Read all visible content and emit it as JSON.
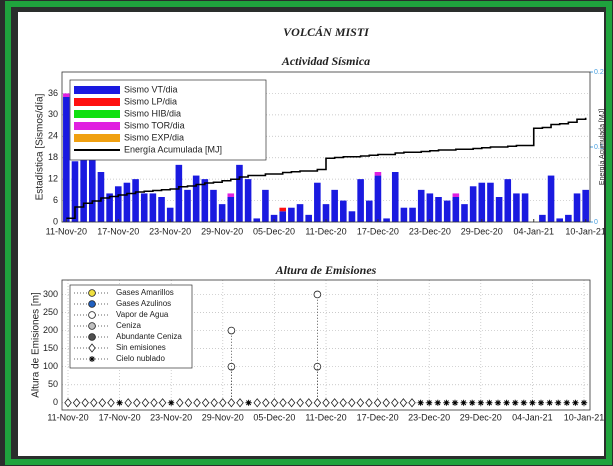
{
  "title": "VOLCÁN MISTI",
  "chart_data": [
    {
      "type": "bar",
      "title": "Actividad Sísmica",
      "y_label": "Estadística [Sismos/día]",
      "y2_label": "Energía Acumulada [MJ]",
      "stacked": true,
      "grid": true,
      "legend": "upper-left",
      "categories": [
        "11-Nov-20",
        null,
        null,
        null,
        null,
        null,
        "17-Nov-20",
        null,
        null,
        null,
        null,
        null,
        "23-Nov-20",
        null,
        null,
        null,
        null,
        null,
        "29-Nov-20",
        null,
        null,
        null,
        null,
        null,
        "05-Dec-20",
        null,
        null,
        null,
        null,
        null,
        "11-Dec-20",
        null,
        null,
        null,
        null,
        null,
        "17-Dec-20",
        null,
        null,
        null,
        null,
        null,
        "23-Dec-20",
        null,
        null,
        null,
        null,
        null,
        "29-Dec-20",
        null,
        null,
        null,
        null,
        null,
        "04-Jan-21",
        null,
        null,
        null,
        null,
        null,
        "10-Jan-21"
      ],
      "ylim": [
        0,
        42
      ],
      "yticks": [
        0,
        6,
        12,
        18,
        24,
        30,
        36
      ],
      "y2lim": [
        0,
        0.2
      ],
      "y2ticks": [
        0,
        0.1,
        0.2
      ],
      "series": [
        {
          "name": "Sismo VT/dia",
          "color": "#1a1ae0",
          "values": [
            35,
            17,
            19,
            18,
            14,
            8,
            10,
            11,
            12,
            8,
            8,
            7,
            4,
            16,
            9,
            13,
            12,
            9,
            5,
            7,
            16,
            12,
            1,
            9,
            2,
            3,
            4,
            5,
            2,
            11,
            5,
            9,
            6,
            3,
            12,
            6,
            13,
            1,
            14,
            4,
            4,
            9,
            8,
            7,
            6,
            7,
            5,
            10,
            11,
            11,
            7,
            12,
            8,
            8,
            0,
            2,
            13,
            1,
            2,
            8,
            9
          ]
        },
        {
          "name": "Sismo LP/dia",
          "color": "#ff1010",
          "values": [
            0,
            0,
            0,
            0,
            0,
            0,
            0,
            0,
            0,
            0,
            0,
            0,
            0,
            0,
            0,
            0,
            0,
            0,
            0,
            0,
            0,
            0,
            0,
            0,
            0,
            1,
            0,
            0,
            0,
            0,
            0,
            0,
            0,
            0,
            0,
            0,
            0,
            0,
            0,
            0,
            0,
            0,
            0,
            0,
            0,
            0,
            0,
            0,
            0,
            0,
            0,
            0,
            0,
            0,
            0,
            0,
            0,
            0,
            0,
            0,
            0
          ]
        },
        {
          "name": "Sismo HIB/dia",
          "color": "#10e010",
          "values": [
            0,
            0,
            0,
            0,
            0,
            0,
            0,
            0,
            0,
            0,
            0,
            0,
            0,
            0,
            0,
            0,
            0,
            0,
            0,
            0,
            0,
            0,
            0,
            0,
            0,
            0,
            0,
            0,
            0,
            0,
            0,
            0,
            0,
            0,
            0,
            0,
            0,
            0,
            0,
            0,
            0,
            0,
            0,
            0,
            0,
            0,
            0,
            0,
            0,
            0,
            0,
            0,
            0,
            0,
            0,
            0,
            0,
            0,
            0,
            0,
            0
          ]
        },
        {
          "name": "Sismo TOR/dia",
          "color": "#e020e0",
          "values": [
            1,
            0,
            0,
            0,
            0,
            0,
            0,
            0,
            0,
            0,
            0,
            0,
            0,
            0,
            0,
            0,
            0,
            0,
            0,
            1,
            0,
            0,
            0,
            0,
            0,
            0,
            0,
            0,
            0,
            0,
            0,
            0,
            0,
            0,
            0,
            0,
            1,
            0,
            0,
            0,
            0,
            0,
            0,
            0,
            0,
            1,
            0,
            0,
            0,
            0,
            0,
            0,
            0,
            0,
            0,
            0,
            0,
            0,
            0,
            0,
            0
          ]
        },
        {
          "name": "Sismo EXP/dia",
          "color": "#f0a010",
          "values": [
            0,
            0,
            0,
            0,
            0,
            0,
            0,
            0,
            0,
            0,
            0,
            0,
            0,
            0,
            0,
            0,
            0,
            0,
            0,
            0,
            0,
            0,
            0,
            0,
            0,
            0,
            0,
            0,
            0,
            0,
            0,
            0,
            0,
            0,
            0,
            0,
            0,
            0,
            0,
            0,
            0,
            0,
            0,
            0,
            0,
            0,
            0,
            0,
            0,
            0,
            0,
            0,
            0,
            0,
            0,
            0,
            0,
            0,
            0,
            0,
            0
          ]
        },
        {
          "name": "Energía Acumulada [MJ]",
          "type": "line",
          "axis": "y2",
          "color": "#000000",
          "values": [
            0.005,
            0.02,
            0.025,
            0.028,
            0.032,
            0.034,
            0.036,
            0.038,
            0.04,
            0.041,
            0.042,
            0.043,
            0.044,
            0.047,
            0.048,
            0.05,
            0.052,
            0.053,
            0.055,
            0.057,
            0.06,
            0.062,
            0.062,
            0.064,
            0.064,
            0.066,
            0.067,
            0.068,
            0.068,
            0.07,
            0.085,
            0.086,
            0.087,
            0.087,
            0.088,
            0.089,
            0.09,
            0.09,
            0.092,
            0.093,
            0.093,
            0.094,
            0.095,
            0.096,
            0.096,
            0.097,
            0.097,
            0.098,
            0.099,
            0.1,
            0.1,
            0.101,
            0.102,
            0.102,
            0.125,
            0.126,
            0.13,
            0.131,
            0.133,
            0.137,
            0.139
          ]
        }
      ]
    },
    {
      "type": "scatter",
      "title": "Altura de Emisiones",
      "y_label": "Altura de Emisiones [m]",
      "grid": true,
      "legend": "upper-left",
      "xlim": [
        "11-Nov-20",
        "10-Jan-21"
      ],
      "xticks": [
        "11-Nov-20",
        "17-Nov-20",
        "23-Nov-20",
        "29-Nov-20",
        "05-Dec-20",
        "11-Dec-20",
        "17-Dec-20",
        "23-Dec-20",
        "29-Dec-20",
        "04-Jan-21",
        "10-Jan-21"
      ],
      "ylim": [
        -20,
        340
      ],
      "yticks": [
        0,
        50,
        100,
        150,
        200,
        250,
        300
      ],
      "series": [
        {
          "name": "Gases Amarillos",
          "marker": "circle",
          "color": "#f0e040",
          "x": [],
          "values": []
        },
        {
          "name": "Gases Azulinos",
          "marker": "circle",
          "color": "#2060c0",
          "x": [],
          "values": []
        },
        {
          "name": "Vapor de Agua",
          "marker": "circle",
          "color": "#ffffff",
          "stem": true,
          "x": [
            "30-Nov-20",
            "30-Nov-20",
            "10-Dec-20",
            "10-Dec-20"
          ],
          "values": [
            100,
            200,
            100,
            300
          ]
        },
        {
          "name": "Ceniza",
          "marker": "circle",
          "color": "#c0c0c0",
          "x": [],
          "values": []
        },
        {
          "name": "Abundante Ceniza",
          "marker": "circle",
          "color": "#505050",
          "x": [],
          "values": []
        },
        {
          "name": "Sin emisiones",
          "marker": "diamond",
          "color": "#ffffff",
          "x": [
            "11-Nov-20",
            "12-Nov-20",
            "13-Nov-20",
            "14-Nov-20",
            "15-Nov-20",
            "16-Nov-20",
            "18-Nov-20",
            "19-Nov-20",
            "20-Nov-20",
            "21-Nov-20",
            "22-Nov-20",
            "24-Nov-20",
            "25-Nov-20",
            "26-Nov-20",
            "27-Nov-20",
            "28-Nov-20",
            "29-Nov-20",
            "30-Nov-20",
            "01-Dec-20",
            "03-Dec-20",
            "04-Dec-20",
            "05-Dec-20",
            "06-Dec-20",
            "07-Dec-20",
            "08-Dec-20",
            "09-Dec-20",
            "10-Dec-20",
            "11-Dec-20",
            "12-Dec-20",
            "13-Dec-20",
            "14-Dec-20",
            "15-Dec-20",
            "16-Dec-20",
            "17-Dec-20",
            "18-Dec-20",
            "19-Dec-20",
            "20-Dec-20",
            "21-Dec-20"
          ],
          "values": [
            0,
            0,
            0,
            0,
            0,
            0,
            0,
            0,
            0,
            0,
            0,
            0,
            0,
            0,
            0,
            0,
            0,
            0,
            0,
            0,
            0,
            0,
            0,
            0,
            0,
            0,
            0,
            0,
            0,
            0,
            0,
            0,
            0,
            0,
            0,
            0,
            0,
            0
          ]
        },
        {
          "name": "Cielo nublado",
          "marker": "asterisk",
          "color": "#000000",
          "x": [
            "17-Nov-20",
            "23-Nov-20",
            "02-Dec-20",
            "22-Dec-20",
            "23-Dec-20",
            "24-Dec-20",
            "25-Dec-20",
            "26-Dec-20",
            "27-Dec-20",
            "28-Dec-20",
            "29-Dec-20",
            "30-Dec-20",
            "31-Dec-20",
            "01-Jan-21",
            "02-Jan-21",
            "03-Jan-21",
            "04-Jan-21",
            "05-Jan-21",
            "06-Jan-21",
            "07-Jan-21",
            "08-Jan-21",
            "09-Jan-21",
            "10-Jan-21"
          ],
          "values": [
            0,
            0,
            0,
            0,
            0,
            0,
            0,
            0,
            0,
            0,
            0,
            0,
            0,
            0,
            0,
            0,
            0,
            0,
            0,
            0,
            0,
            0,
            0
          ]
        }
      ]
    }
  ]
}
